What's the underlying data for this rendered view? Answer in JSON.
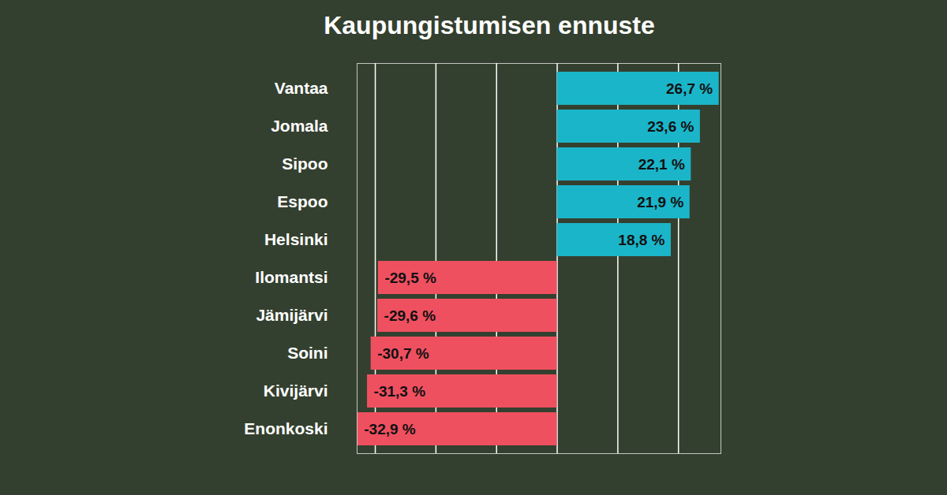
{
  "chart_data": {
    "type": "bar",
    "orientation": "horizontal",
    "title": "Kaupungistumisen ennuste",
    "categories": [
      "Vantaa",
      "Jomala",
      "Sipoo",
      "Espoo",
      "Helsinki",
      "Ilomantsi",
      "Jämijärvi",
      "Soini",
      "Kivijärvi",
      "Enonkoski"
    ],
    "values": [
      26.7,
      23.6,
      22.1,
      21.9,
      18.8,
      -29.5,
      -29.6,
      -30.7,
      -31.3,
      -32.9
    ],
    "value_labels": [
      "26,7 %",
      "23,6 %",
      "22,1 %",
      "21,9 %",
      "18,8 %",
      "-29,5 %",
      "-29,6 %",
      "-30,7 %",
      "-31,3 %",
      "-32,9 %"
    ],
    "colors": [
      "#1bb5c9",
      "#1bb5c9",
      "#1bb5c9",
      "#1bb5c9",
      "#1bb5c9",
      "#ef5060",
      "#ef5060",
      "#ef5060",
      "#ef5060",
      "#ef5060"
    ],
    "xlim": [
      -33,
      27
    ],
    "xticks": [
      -30,
      -20,
      -10,
      0,
      10,
      20
    ],
    "grid": true,
    "data_labels": true,
    "tick_labels": "y"
  }
}
